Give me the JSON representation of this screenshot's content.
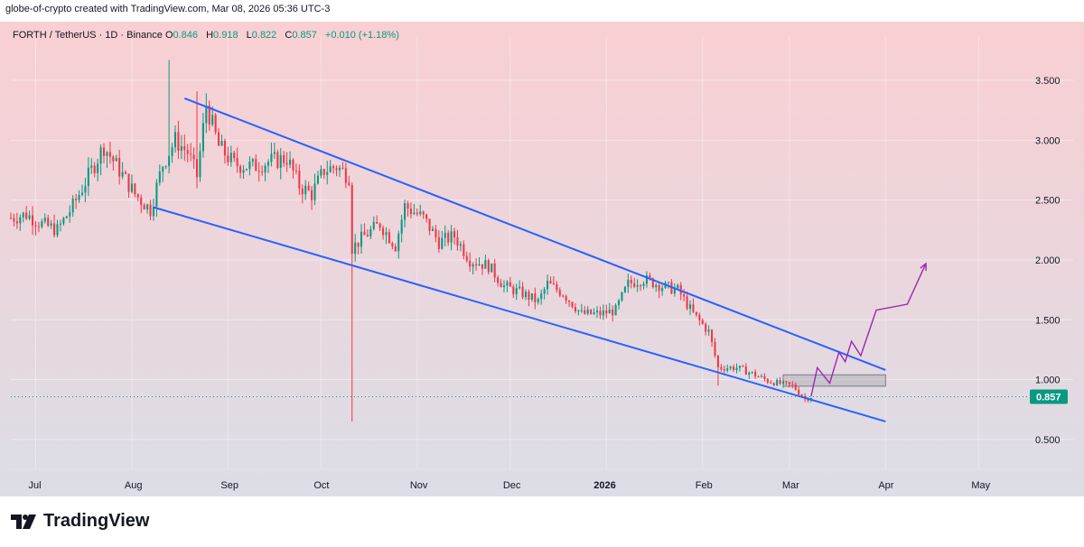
{
  "header": {
    "credit": "globe-of-crypto created with TradingView.com, Mar 08, 2026 05:36 UTC-3"
  },
  "legend": {
    "symbol": "FORTH / TetherUS · 1D · Binance",
    "o_label": "O",
    "o_value": "0.846",
    "h_label": "H",
    "h_value": "0.918",
    "l_label": "L",
    "l_value": "0.822",
    "c_label": "C",
    "c_value": "0.857",
    "change": "+0.010 (+1.18%)"
  },
  "footer": {
    "brand": "TradingView"
  },
  "colors": {
    "up": "#089981",
    "down": "#f23645",
    "trendline": "#2962ff",
    "projection": "#9c27b0",
    "price_tag": "#089981",
    "zone": "#9598a1"
  },
  "chart_data": {
    "type": "candlestick",
    "title": "FORTH / TetherUS · 1D · Binance",
    "x_ticks": [
      {
        "date": "2025-07-01",
        "label": "Jul",
        "bold": false
      },
      {
        "date": "2025-08-01",
        "label": "Aug",
        "bold": false
      },
      {
        "date": "2025-09-01",
        "label": "Sep",
        "bold": false
      },
      {
        "date": "2025-10-01",
        "label": "Oct",
        "bold": false
      },
      {
        "date": "2025-11-01",
        "label": "Nov",
        "bold": false
      },
      {
        "date": "2025-12-01",
        "label": "Dec",
        "bold": false
      },
      {
        "date": "2026-01-01",
        "label": "2026",
        "bold": true
      },
      {
        "date": "2026-02-01",
        "label": "Feb",
        "bold": false
      },
      {
        "date": "2026-03-01",
        "label": "Mar",
        "bold": false
      },
      {
        "date": "2026-04-01",
        "label": "Apr",
        "bold": false
      },
      {
        "date": "2026-05-01",
        "label": "May",
        "bold": false
      }
    ],
    "y_ticks": [
      "3.500",
      "3.000",
      "2.500",
      "2.000",
      "1.500",
      "1.000",
      "0.500"
    ],
    "ylim": [
      0.25,
      3.87
    ],
    "xlim": [
      "2025-06-23",
      "2026-05-14"
    ],
    "grid": true,
    "last_price": {
      "value": 0.857,
      "label": "0.857"
    },
    "price_path": [
      [
        "2025-06-23",
        2.35
      ],
      [
        "2025-06-28",
        2.38
      ],
      [
        "2025-07-03",
        2.3
      ],
      [
        "2025-07-08",
        2.25
      ],
      [
        "2025-07-13",
        2.45
      ],
      [
        "2025-07-18",
        2.7
      ],
      [
        "2025-07-23",
        2.95
      ],
      [
        "2025-07-28",
        2.75
      ],
      [
        "2025-08-02",
        2.55
      ],
      [
        "2025-08-07",
        2.42
      ],
      [
        "2025-08-11",
        2.8
      ],
      [
        "2025-08-15",
        3.0
      ],
      [
        "2025-08-19",
        2.9
      ],
      [
        "2025-08-22",
        2.7
      ],
      [
        "2025-08-25",
        3.3
      ],
      [
        "2025-08-29",
        2.95
      ],
      [
        "2025-09-03",
        2.8
      ],
      [
        "2025-09-09",
        2.78
      ],
      [
        "2025-09-14",
        2.82
      ],
      [
        "2025-09-20",
        2.85
      ],
      [
        "2025-09-24",
        2.62
      ],
      [
        "2025-09-28",
        2.55
      ],
      [
        "2025-10-02",
        2.75
      ],
      [
        "2025-10-06",
        2.78
      ],
      [
        "2025-10-10",
        2.7
      ],
      [
        "2025-10-11",
        2.1
      ],
      [
        "2025-10-15",
        2.2
      ],
      [
        "2025-10-20",
        2.3
      ],
      [
        "2025-10-25",
        2.12
      ],
      [
        "2025-10-28",
        2.45
      ],
      [
        "2025-11-03",
        2.35
      ],
      [
        "2025-11-08",
        2.15
      ],
      [
        "2025-11-13",
        2.2
      ],
      [
        "2025-11-18",
        2.0
      ],
      [
        "2025-11-24",
        1.95
      ],
      [
        "2025-11-29",
        1.78
      ],
      [
        "2025-12-05",
        1.72
      ],
      [
        "2025-12-10",
        1.65
      ],
      [
        "2025-12-13",
        1.8
      ],
      [
        "2025-12-18",
        1.72
      ],
      [
        "2025-12-24",
        1.55
      ],
      [
        "2025-12-30",
        1.55
      ],
      [
        "2026-01-04",
        1.58
      ],
      [
        "2026-01-08",
        1.8
      ],
      [
        "2026-01-13",
        1.84
      ],
      [
        "2026-01-19",
        1.78
      ],
      [
        "2026-01-24",
        1.75
      ],
      [
        "2026-01-29",
        1.55
      ],
      [
        "2026-02-03",
        1.4
      ],
      [
        "2026-02-06",
        1.1
      ],
      [
        "2026-02-12",
        1.1
      ],
      [
        "2026-02-17",
        1.05
      ],
      [
        "2026-02-22",
        0.99
      ],
      [
        "2026-02-27",
        0.96
      ],
      [
        "2026-03-02",
        0.95
      ],
      [
        "2026-03-06",
        0.84
      ],
      [
        "2026-03-08",
        0.857
      ]
    ],
    "spikes": [
      {
        "date": "2025-08-13",
        "high": 3.67
      },
      {
        "date": "2025-08-22",
        "high": 3.41
      },
      {
        "date": "2025-10-11",
        "low": 0.65
      },
      {
        "date": "2026-02-06",
        "low": 0.95
      }
    ],
    "trendlines": [
      {
        "name": "upper",
        "points": [
          [
            "2025-08-18",
            3.35
          ],
          [
            "2026-04-01",
            1.08
          ]
        ]
      },
      {
        "name": "lower",
        "points": [
          [
            "2025-08-08",
            2.44
          ],
          [
            "2026-04-01",
            0.65
          ]
        ]
      }
    ],
    "zone": {
      "from": "2026-02-27",
      "to": "2026-04-01",
      "low": 0.945,
      "high": 1.04
    },
    "projection": [
      [
        "2026-03-08",
        0.86
      ],
      [
        "2026-03-10",
        1.1
      ],
      [
        "2026-03-14",
        0.97
      ],
      [
        "2026-03-17",
        1.23
      ],
      [
        "2026-03-19",
        1.15
      ],
      [
        "2026-03-21",
        1.32
      ],
      [
        "2026-03-24",
        1.2
      ],
      [
        "2026-03-29",
        1.58
      ],
      [
        "2026-04-08",
        1.63
      ],
      [
        "2026-04-14",
        1.97
      ]
    ]
  }
}
